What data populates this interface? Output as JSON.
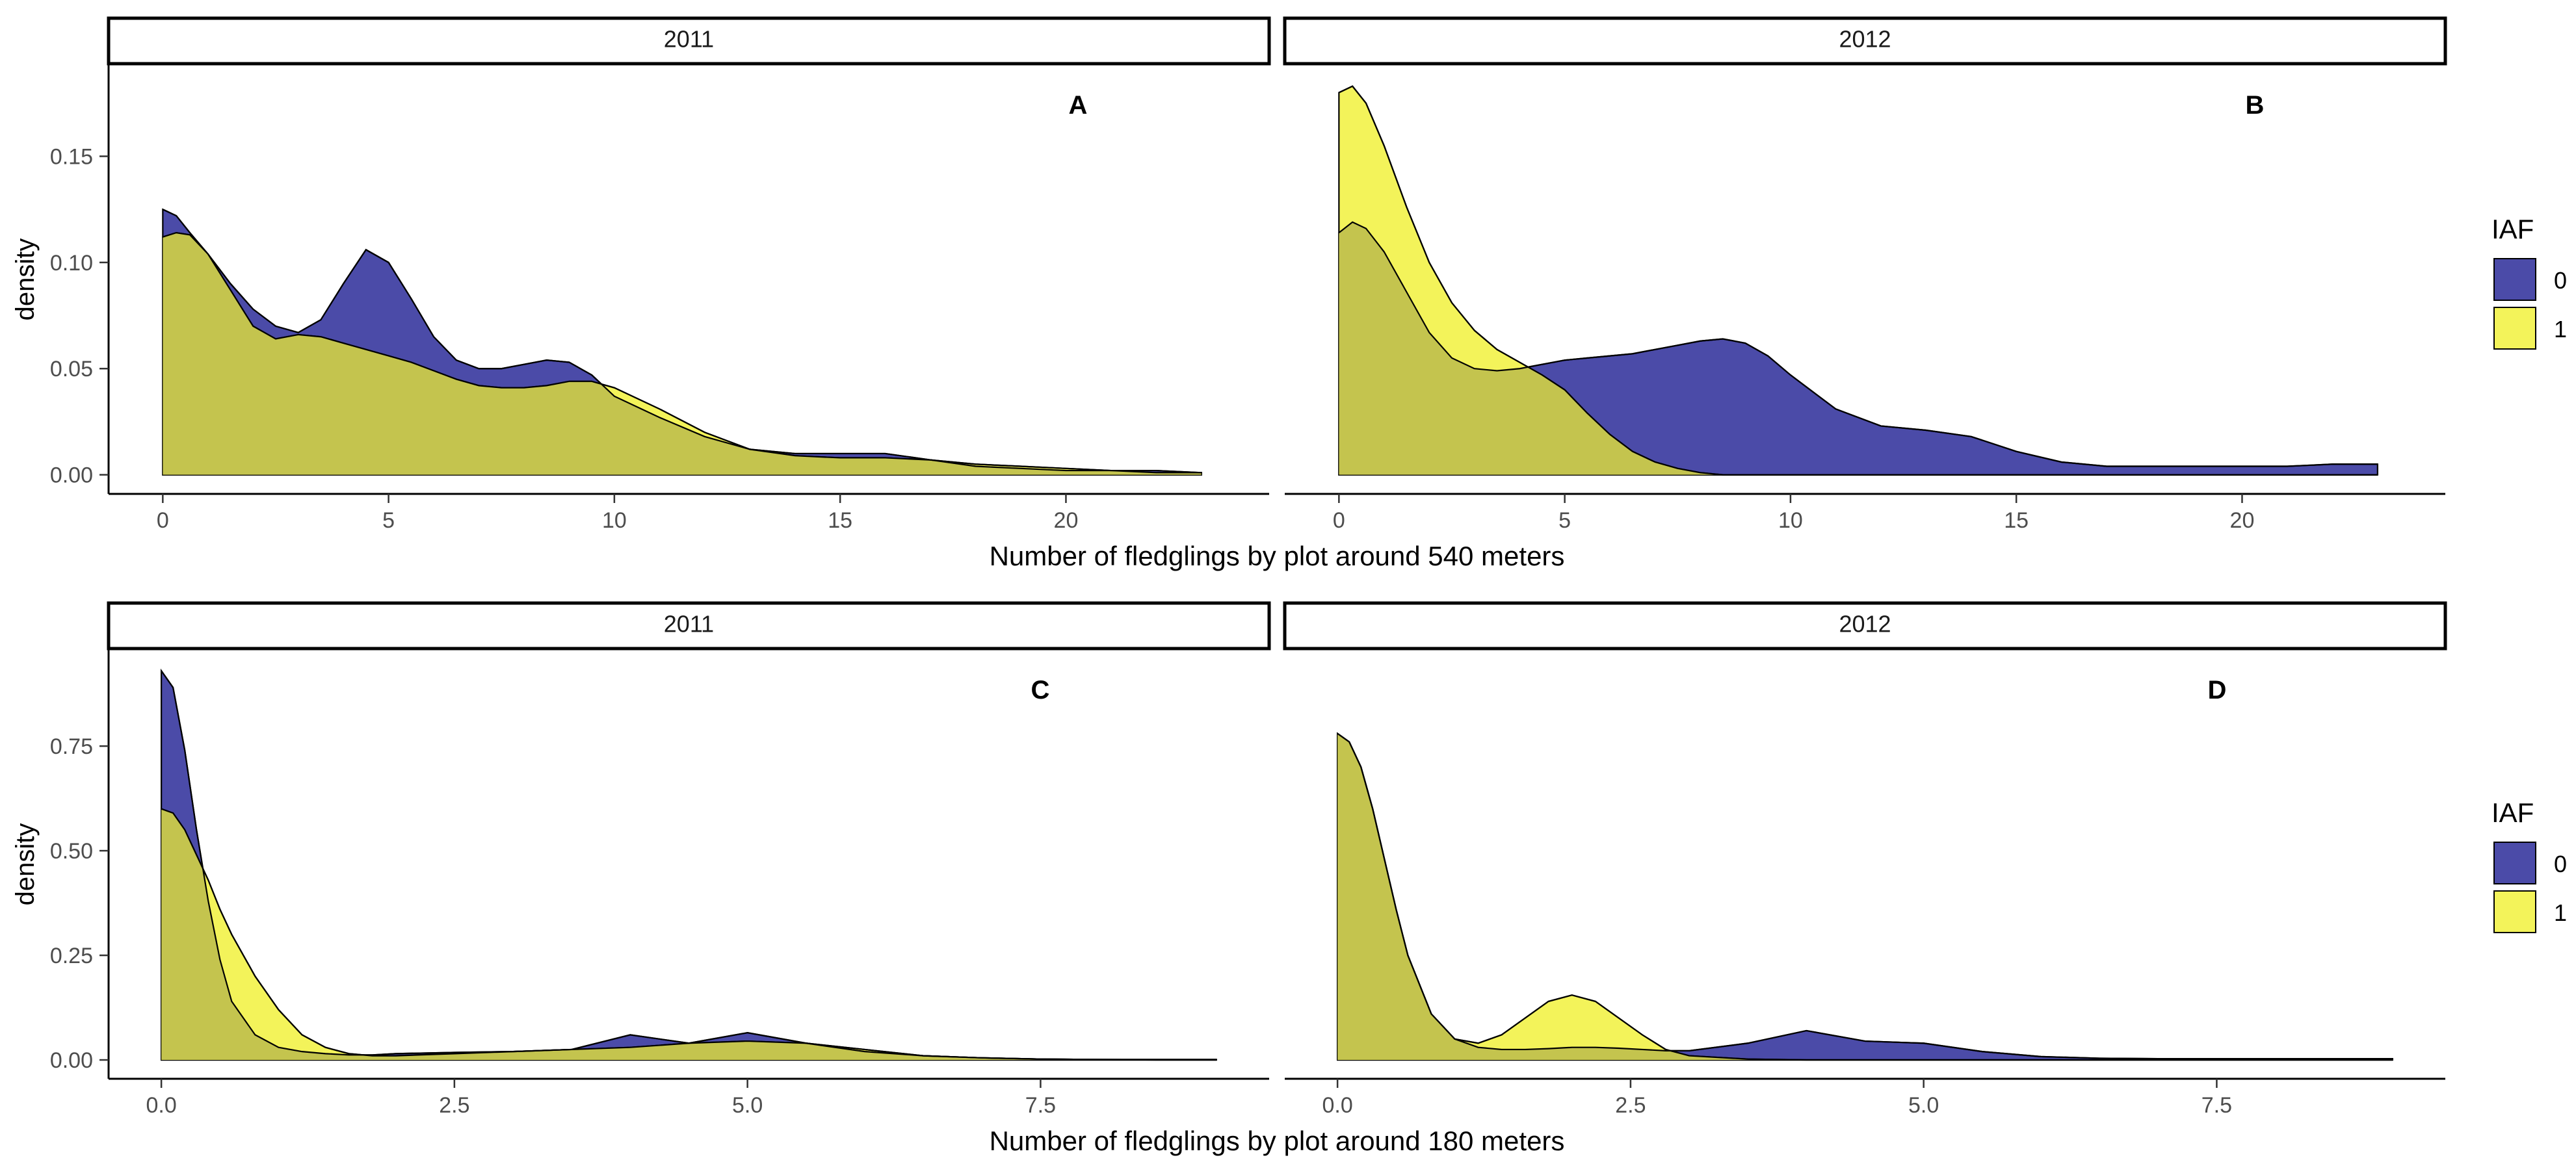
{
  "colors": {
    "iaf0": "#4b4ba8",
    "iaf1": "#f3f35a",
    "overlap": "#c4c44e"
  },
  "chart_data": [
    {
      "type": "area",
      "row": 0,
      "xlabel": "Number of fledglings by plot around 540 meters",
      "ylabel": "density",
      "xlim": [
        -1.2,
        24.5
      ],
      "ylim": [
        -0.009,
        0.193
      ],
      "xticks": [
        0,
        5,
        10,
        15,
        20
      ],
      "xtick_labels": [
        "0",
        "5",
        "10",
        "15",
        "20"
      ],
      "yticks": [
        0,
        0.05,
        0.1,
        0.15
      ],
      "ytick_labels": [
        "0.00",
        "0.05",
        "0.10",
        "0.15"
      ],
      "legend": {
        "title": "IAF",
        "entries": [
          "0",
          "1"
        ]
      },
      "facets": [
        {
          "strip": "2011",
          "tag": "A",
          "x": [
            0,
            0.3,
            0.6,
            1,
            1.5,
            2,
            2.5,
            3,
            3.5,
            4,
            4.5,
            5,
            5.5,
            6,
            6.5,
            7,
            7.5,
            8,
            8.5,
            9,
            9.5,
            10,
            11,
            12,
            13,
            14,
            15,
            16,
            17,
            18,
            19,
            20,
            21,
            22,
            23
          ],
          "series": [
            {
              "name": "0",
              "values": [
                0.125,
                0.122,
                0.114,
                0.104,
                0.09,
                0.078,
                0.07,
                0.067,
                0.073,
                0.09,
                0.106,
                0.1,
                0.083,
                0.065,
                0.054,
                0.05,
                0.05,
                0.052,
                0.054,
                0.053,
                0.047,
                0.037,
                0.027,
                0.018,
                0.012,
                0.01,
                0.01,
                0.01,
                0.007,
                0.004,
                0.003,
                0.002,
                0.002,
                0.002,
                0.001
              ]
            },
            {
              "name": "1",
              "values": [
                0.112,
                0.114,
                0.113,
                0.104,
                0.087,
                0.07,
                0.064,
                0.066,
                0.065,
                0.062,
                0.059,
                0.056,
                0.053,
                0.049,
                0.045,
                0.042,
                0.041,
                0.041,
                0.042,
                0.044,
                0.044,
                0.041,
                0.031,
                0.02,
                0.012,
                0.009,
                0.008,
                0.008,
                0.007,
                0.005,
                0.004,
                0.003,
                0.002,
                0.001,
                0.001
              ]
            }
          ]
        },
        {
          "strip": "2012",
          "tag": "B",
          "x": [
            0,
            0.3,
            0.6,
            1,
            1.5,
            2,
            2.5,
            3,
            3.5,
            4,
            4.5,
            5,
            5.5,
            6,
            6.5,
            7,
            7.5,
            8,
            8.5,
            9,
            9.5,
            10,
            11,
            12,
            13,
            14,
            15,
            16,
            17,
            18,
            19,
            20,
            21,
            22,
            23
          ],
          "series": [
            {
              "name": "0",
              "values": [
                0.114,
                0.119,
                0.116,
                0.105,
                0.086,
                0.067,
                0.055,
                0.05,
                0.049,
                0.05,
                0.052,
                0.054,
                0.055,
                0.056,
                0.057,
                0.059,
                0.061,
                0.063,
                0.064,
                0.062,
                0.056,
                0.047,
                0.031,
                0.023,
                0.021,
                0.018,
                0.011,
                0.006,
                0.004,
                0.004,
                0.004,
                0.004,
                0.004,
                0.005,
                0.005
              ]
            },
            {
              "name": "1",
              "values": [
                0.18,
                0.183,
                0.175,
                0.155,
                0.126,
                0.1,
                0.081,
                0.068,
                0.059,
                0.053,
                0.047,
                0.04,
                0.029,
                0.019,
                0.011,
                0.006,
                0.003,
                0.001,
                0.0,
                0,
                0,
                0,
                0,
                0,
                0,
                0,
                0,
                0,
                0,
                0,
                0,
                0,
                0,
                0,
                0
              ]
            }
          ]
        }
      ]
    },
    {
      "type": "area",
      "row": 1,
      "xlabel": "Number of fledglings by plot around 180 meters",
      "ylabel": "density",
      "xlim": [
        -0.45,
        9.45
      ],
      "ylim": [
        -0.045,
        0.98
      ],
      "xticks": [
        0,
        2.5,
        5,
        7.5
      ],
      "xtick_labels": [
        "0.0",
        "2.5",
        "5.0",
        "7.5"
      ],
      "yticks": [
        0,
        0.25,
        0.5,
        0.75
      ],
      "ytick_labels": [
        "0.00",
        "0.25",
        "0.50",
        "0.75"
      ],
      "legend": {
        "title": "IAF",
        "entries": [
          "0",
          "1"
        ]
      },
      "facets": [
        {
          "strip": "2011",
          "tag": "C",
          "x": [
            0,
            0.1,
            0.2,
            0.3,
            0.4,
            0.5,
            0.6,
            0.8,
            1.0,
            1.2,
            1.4,
            1.6,
            1.8,
            2.0,
            2.5,
            3.0,
            3.5,
            4.0,
            4.5,
            5.0,
            5.5,
            6.0,
            6.5,
            7.0,
            7.5,
            8.0,
            8.5,
            9.0
          ],
          "series": [
            {
              "name": "0",
              "values": [
                0.93,
                0.89,
                0.74,
                0.55,
                0.38,
                0.24,
                0.14,
                0.06,
                0.03,
                0.02,
                0.015,
                0.012,
                0.012,
                0.015,
                0.018,
                0.02,
                0.025,
                0.06,
                0.04,
                0.065,
                0.04,
                0.02,
                0.01,
                0.005,
                0.002,
                0.001,
                0.001,
                0.001
              ]
            },
            {
              "name": "1",
              "values": [
                0.6,
                0.59,
                0.55,
                0.49,
                0.43,
                0.36,
                0.3,
                0.2,
                0.12,
                0.06,
                0.03,
                0.015,
                0.01,
                0.01,
                0.015,
                0.02,
                0.025,
                0.03,
                0.04,
                0.045,
                0.04,
                0.025,
                0.01,
                0.005,
                0.002,
                0.001,
                0.0,
                0.0
              ]
            }
          ]
        },
        {
          "strip": "2012",
          "tag": "D",
          "x": [
            0,
            0.1,
            0.2,
            0.3,
            0.4,
            0.5,
            0.6,
            0.8,
            1.0,
            1.2,
            1.4,
            1.6,
            1.8,
            2.0,
            2.2,
            2.4,
            2.6,
            2.8,
            3.0,
            3.5,
            4.0,
            4.5,
            5.0,
            5.5,
            6.0,
            6.5,
            7.0,
            7.5,
            8.0,
            8.5,
            9.0
          ],
          "series": [
            {
              "name": "0",
              "values": [
                0.78,
                0.76,
                0.7,
                0.6,
                0.48,
                0.36,
                0.25,
                0.11,
                0.05,
                0.03,
                0.025,
                0.025,
                0.027,
                0.03,
                0.03,
                0.028,
                0.025,
                0.022,
                0.022,
                0.04,
                0.07,
                0.045,
                0.04,
                0.02,
                0.008,
                0.004,
                0.003,
                0.003,
                0.003,
                0.003,
                0.003
              ]
            },
            {
              "name": "1",
              "values": [
                0.78,
                0.76,
                0.7,
                0.6,
                0.48,
                0.36,
                0.25,
                0.11,
                0.05,
                0.04,
                0.06,
                0.1,
                0.14,
                0.155,
                0.14,
                0.1,
                0.06,
                0.025,
                0.01,
                0.002,
                0,
                0,
                0,
                0,
                0,
                0,
                0,
                0,
                0,
                0,
                0
              ]
            }
          ]
        }
      ]
    }
  ]
}
